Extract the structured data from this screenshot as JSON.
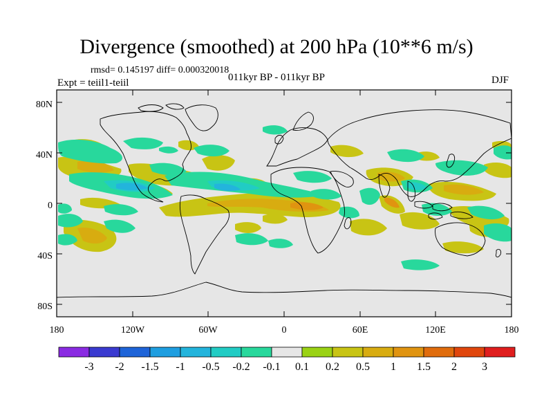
{
  "figure": {
    "title": "Divergence (smoothed) at 200 hPa (10**6 m/s)",
    "stats": "rmsd= 0.145197 diff= 0.000320018",
    "experiment": "Expt = teiil1-teiil",
    "subtitle": "011kyr BP - 011kyr BP",
    "season": "DJF"
  },
  "map": {
    "projection": "cylindrical-equidistant",
    "background_color": "#e6e6e6",
    "lat_ticks": [
      "80N",
      "40N",
      "0",
      "40S",
      "80S"
    ],
    "lon_ticks": [
      "180",
      "120W",
      "60W",
      "0",
      "60E",
      "120E",
      "180"
    ]
  },
  "colorbar": {
    "colors": [
      "#8a2be2",
      "#3a3ad0",
      "#1e64d8",
      "#1e9ee0",
      "#23b4dc",
      "#21ccc4",
      "#28d89c",
      "#e6e6e6",
      "#9ad214",
      "#c8c414",
      "#d8ac10",
      "#e09410",
      "#e06c0c",
      "#e0460c",
      "#e01e1e"
    ],
    "labels": [
      "-3",
      "-2",
      "-1.5",
      "-1",
      "-0.5",
      "-0.2",
      "-0.1",
      "0.1",
      "0.2",
      "0.5",
      "1",
      "1.5",
      "2",
      "3"
    ]
  },
  "field_colors": {
    "weak_positive": "#c8c414",
    "positive": "#d8ac10",
    "strong_positive": "#e09410",
    "weak_negative": "#28d89c",
    "negative": "#21ccc4",
    "strong_negative": "#23b4dc",
    "coastline": "#000000"
  }
}
